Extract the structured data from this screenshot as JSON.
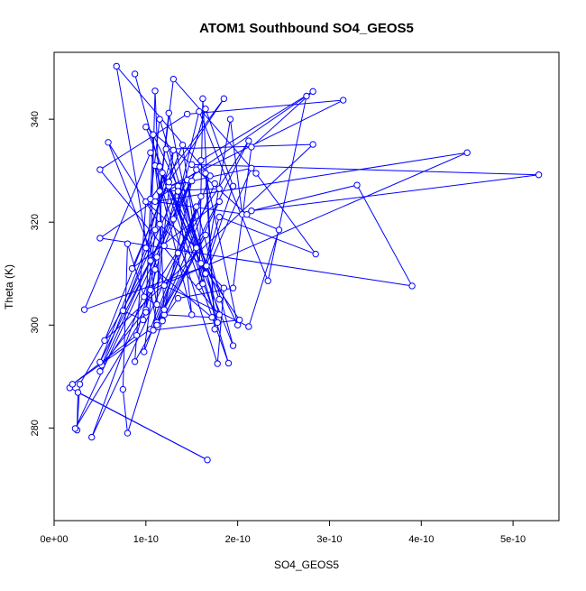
{
  "chart_data": {
    "type": "line",
    "title": "ATOM1 Southbound SO4_GEOS5",
    "xlabel": "SO4_GEOS5",
    "ylabel": "Theta (K)",
    "xlim": [
      0,
      5.5e-10
    ],
    "ylim": [
      262,
      353
    ],
    "x_ticks": [
      0,
      1e-10,
      2e-10,
      3e-10,
      4e-10,
      5e-10
    ],
    "x_tick_labels": [
      "0e+00",
      "1e-10",
      "2e-10",
      "3e-10",
      "4e-10",
      "5e-10"
    ],
    "y_ticks": [
      280,
      300,
      320,
      340
    ],
    "y_tick_labels": [
      "280",
      "300",
      "320",
      "340"
    ],
    "grid": false,
    "legend": "none",
    "marker": "open-circle",
    "colors": {
      "series": "#0000ff",
      "frame": "#000000",
      "background": "#ffffff"
    },
    "series": [
      {
        "points": [
          [
            1.7e-11,
            287.8
          ],
          [
            1.67e-10,
            273.8
          ],
          [
            2.6e-11,
            286.9
          ],
          [
            2.5e-11,
            279.6
          ],
          [
            2.8e-11,
            288.5
          ],
          [
            1.05e-10,
            312.5
          ],
          [
            1.1e-10,
            345.5
          ],
          [
            1.2e-10,
            302.0
          ],
          [
            1.72e-10,
            301.5
          ],
          [
            1.1e-10,
            310.8
          ],
          [
            9.8e-11,
            294.8
          ],
          [
            1.7e-10,
            329.0
          ],
          [
            6.8e-11,
            350.3
          ],
          [
            1.12e-10,
            304.0
          ],
          [
            1.18e-10,
            329.6
          ],
          [
            2e-10,
            300.0
          ],
          [
            1.65e-10,
            329.5
          ],
          [
            1.75e-10,
            299.2
          ],
          [
            1.62e-10,
            344.0
          ],
          [
            1.58e-10,
            307.5
          ],
          [
            1.8e-10,
            321.0
          ],
          [
            2.85e-10,
            313.8
          ],
          [
            2.2e-10,
            329.5
          ],
          [
            1.3e-10,
            347.8
          ],
          [
            1e-10,
            303.0
          ],
          [
            5.2e-11,
            292.2
          ],
          [
            1.1e-10,
            318.5
          ],
          [
            1.25e-10,
            341.2
          ],
          [
            1.62e-10,
            308.0
          ],
          [
            1.92e-10,
            340.0
          ],
          [
            2.05e-10,
            321.5
          ],
          [
            2.45e-10,
            318.5
          ],
          [
            2.12e-10,
            299.7
          ],
          [
            1.2e-10,
            307.7
          ],
          [
            5.9e-11,
            335.5
          ],
          [
            1.15e-10,
            319.6
          ],
          [
            1.85e-10,
            307.2
          ],
          [
            1.78e-10,
            292.5
          ],
          [
            1.05e-10,
            333.5
          ],
          [
            3.3e-11,
            303.0
          ],
          [
            1.66e-10,
            311.5
          ],
          [
            1.95e-10,
            327.0
          ],
          [
            1.65e-10,
            342.0
          ],
          [
            1.3e-10,
            320.6
          ],
          [
            1.58e-10,
            341.5
          ],
          [
            2.33e-10,
            308.6
          ],
          [
            2.75e-10,
            344.5
          ],
          [
            5e-11,
            316.9
          ],
          [
            3.9e-10,
            307.6
          ],
          [
            3.3e-10,
            327.2
          ],
          [
            2.15e-10,
            322.2
          ],
          [
            5.28e-10,
            329.2
          ],
          [
            1.5e-10,
            331.2
          ],
          [
            1e-10,
            338.5
          ],
          [
            1.95e-10,
            296.0
          ],
          [
            1.55e-10,
            323.0
          ],
          [
            1.35e-10,
            314.0
          ],
          [
            4.1e-11,
            278.2
          ],
          [
            1.12e-10,
            313.2
          ],
          [
            9e-11,
            298.0
          ],
          [
            2e-11,
            288.5
          ],
          [
            1.05e-10,
            299.2
          ],
          [
            1.6e-10,
            325.0
          ],
          [
            1.12e-10,
            300.5
          ],
          [
            2.12e-10,
            335.8
          ],
          [
            5e-11,
            291.0
          ],
          [
            1.45e-10,
            328.2
          ],
          [
            1.78e-10,
            300.5
          ],
          [
            1.25e-10,
            327.0
          ],
          [
            2.15e-10,
            330.5
          ],
          [
            1.65e-10,
            310.0
          ],
          [
            1.15e-10,
            330.5
          ],
          [
            1.9e-10,
            292.6
          ],
          [
            1.22e-10,
            334.2
          ],
          [
            2.82e-10,
            335.1
          ],
          [
            5.5e-11,
            297.0
          ],
          [
            1.4e-10,
            335.0
          ],
          [
            1.55e-10,
            315.0
          ],
          [
            1e-10,
            324.0
          ],
          [
            8.8e-11,
            292.9
          ],
          [
            1.65e-10,
            317.5
          ],
          [
            1.18e-10,
            301.0
          ],
          [
            1.35e-10,
            305.2
          ],
          [
            1.95e-10,
            307.2
          ],
          [
            2.15e-10,
            334.6
          ],
          [
            2.82e-10,
            345.4
          ],
          [
            1.6e-10,
            332.0
          ],
          [
            2.3e-11,
            279.9
          ],
          [
            1e-10,
            302.5
          ],
          [
            1.08e-10,
            337.0
          ],
          [
            1.35e-10,
            326.8
          ],
          [
            7.5e-11,
            302.8
          ],
          [
            9.7e-11,
            301.0
          ],
          [
            1.35e-10,
            327.0
          ],
          [
            1.8e-10,
            305.0
          ],
          [
            1.35e-10,
            326.0
          ],
          [
            1.5e-10,
            302.0
          ],
          [
            1.1e-10,
            331.0
          ],
          [
            1.2e-10,
            315.4
          ],
          [
            1.5e-10,
            328.0
          ],
          [
            1.2e-10,
            303.0
          ],
          [
            9.8e-11,
            305.5
          ],
          [
            8e-11,
            315.8
          ],
          [
            7.5e-11,
            287.5
          ],
          [
            8e-11,
            279.0
          ],
          [
            1.18e-10,
            300.8
          ],
          [
            1.8e-10,
            324.0
          ],
          [
            8.5e-11,
            311.0
          ],
          [
            1.25e-10,
            327.8
          ],
          [
            1.85e-10,
            344.0
          ],
          [
            1.05e-10,
            324.5
          ],
          [
            1.15e-10,
            340.0
          ],
          [
            1.8e-10,
            302.0
          ],
          [
            5e-11,
            330.2
          ],
          [
            1.45e-10,
            341.0
          ],
          [
            3.15e-10,
            343.7
          ],
          [
            1.15e-10,
            326.0
          ],
          [
            1.8e-10,
            326.5
          ],
          [
            1.75e-10,
            327.5
          ],
          [
            1.12e-10,
            300.0
          ],
          [
            1.05e-10,
            306.8
          ],
          [
            4.5e-10,
            333.5
          ],
          [
            1.1e-10,
            324.0
          ],
          [
            2.1e-10,
            321.5
          ],
          [
            1.55e-10,
            330.2
          ],
          [
            5e-11,
            292.8
          ],
          [
            1e-10,
            315.0
          ],
          [
            1.3e-10,
            334.0
          ],
          [
            1.08e-10,
            299.0
          ],
          [
            2.02e-10,
            301.0
          ],
          [
            1.6e-10,
            312.0
          ],
          [
            1.15e-10,
            330.8
          ],
          [
            8.8e-11,
            348.8
          ]
        ]
      }
    ]
  }
}
